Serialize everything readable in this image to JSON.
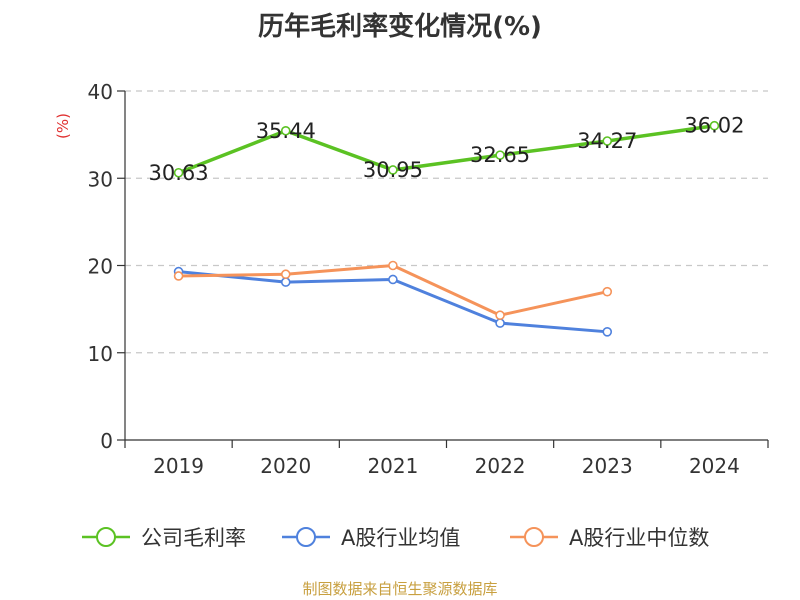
{
  "chart_data": {
    "type": "line",
    "title": "历年毛利率变化情况(%)",
    "ylabel": "(%)",
    "xlabel": "",
    "categories": [
      "2019",
      "2020",
      "2021",
      "2022",
      "2023",
      "2024"
    ],
    "ylim": [
      0,
      40
    ],
    "yticks": [
      "0",
      "10",
      "20",
      "30",
      "40"
    ],
    "grid": true,
    "legend_position": "bottom",
    "series": [
      {
        "name": "公司毛利率",
        "color": "#5bc223",
        "values": [
          30.63,
          35.44,
          30.95,
          32.65,
          34.27,
          36.02
        ],
        "labels": [
          "30.63",
          "35.44",
          "30.95",
          "32.65",
          "34.27",
          "36.02"
        ]
      },
      {
        "name": "A股行业均值",
        "color": "#4f81dd",
        "values": [
          19.3,
          18.1,
          18.4,
          13.4,
          12.4,
          null
        ]
      },
      {
        "name": "A股行业中位数",
        "color": "#f5935a",
        "values": [
          18.8,
          19.0,
          20.0,
          14.3,
          17.0,
          null
        ]
      }
    ]
  },
  "footer": {
    "source": "制图数据来自恒生聚源数据库"
  }
}
